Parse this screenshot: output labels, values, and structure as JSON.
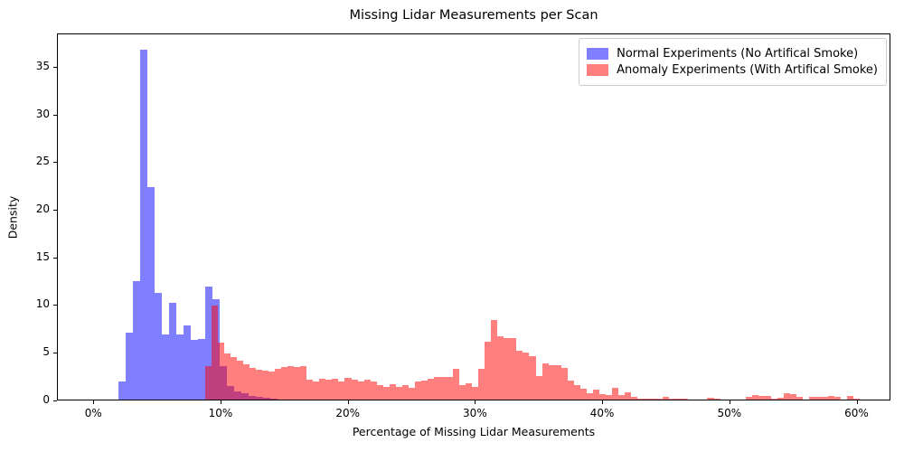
{
  "title": "Missing Lidar Measurements per Scan",
  "axes": {
    "xlabel": "Percentage of Missing Lidar Measurements",
    "ylabel": "Density"
  },
  "legend": {
    "items": [
      {
        "label": "Normal Experiments (No Artifical Smoke)",
        "color": "#7f7fff"
      },
      {
        "label": "Anomaly Experiments (With Artifical Smoke)",
        "color": "#ff7f7f"
      }
    ]
  },
  "chart_data": {
    "type": "bar",
    "subtype": "overlaid-histograms",
    "title": "Missing Lidar Measurements per Scan",
    "xlabel": "Percentage of Missing Lidar Measurements",
    "ylabel": "Density",
    "xlim": [
      -2.9,
      62.7
    ],
    "ylim": [
      0,
      38.5
    ],
    "grid": false,
    "legend_position": "upper right",
    "x_ticks": [
      {
        "value": 0,
        "label": "0%"
      },
      {
        "value": 10,
        "label": "10%"
      },
      {
        "value": 20,
        "label": "20%"
      },
      {
        "value": 30,
        "label": "30%"
      },
      {
        "value": 40,
        "label": "40%"
      },
      {
        "value": 50,
        "label": "50%"
      },
      {
        "value": 60,
        "label": "60%"
      }
    ],
    "y_ticks": [
      0,
      5,
      10,
      15,
      20,
      25,
      30,
      35
    ],
    "series": [
      {
        "name": "Normal Experiments (No Artifical Smoke)",
        "color_solid": "rgb(127,127,255)",
        "bin_start_percent": 1.9,
        "bin_width_percent": 0.57,
        "densities": [
          1.9,
          7.0,
          12.4,
          36.7,
          22.3,
          11.2,
          6.8,
          10.2,
          6.8,
          7.8,
          6.3,
          6.4,
          11.9,
          10.5,
          3.5,
          1.4,
          0.9,
          0.7,
          0.4,
          0.3,
          0.2,
          0.1
        ]
      },
      {
        "name": "Anomaly Experiments (With Artifical Smoke)",
        "color_solid": "rgba(255,0,0,0.5)",
        "bin_start_percent": 8.7,
        "bin_width_percent": 0.5,
        "densities": [
          3.5,
          9.9,
          6.0,
          4.8,
          4.5,
          4.1,
          3.7,
          3.3,
          3.1,
          3.0,
          2.9,
          3.2,
          3.4,
          3.5,
          3.4,
          3.5,
          2.1,
          1.9,
          2.2,
          2.1,
          2.2,
          1.9,
          2.3,
          2.1,
          1.9,
          2.1,
          1.9,
          1.5,
          1.3,
          1.6,
          1.3,
          1.5,
          1.2,
          1.9,
          2.0,
          2.2,
          2.4,
          2.4,
          2.4,
          3.2,
          1.5,
          1.7,
          1.35,
          3.2,
          6.1,
          8.4,
          6.6,
          6.5,
          6.5,
          5.1,
          4.9,
          4.6,
          2.5,
          3.8,
          3.6,
          3.6,
          3.3,
          2.0,
          1.5,
          1.1,
          0.65,
          1.05,
          0.55,
          0.45,
          1.2,
          0.5,
          0.75,
          0.3,
          0.1,
          0.1,
          0.1,
          0.1,
          0.25,
          0.05,
          0.05,
          0.05,
          0,
          0,
          0,
          0.2,
          0.1,
          0,
          0,
          0,
          0,
          0.3,
          0.45,
          0.35,
          0.35,
          0.1,
          0.2,
          0.65,
          0.55,
          0.3,
          0,
          0.25,
          0.25,
          0.3,
          0.4,
          0.25,
          0,
          0.35,
          0.1
        ]
      }
    ]
  }
}
